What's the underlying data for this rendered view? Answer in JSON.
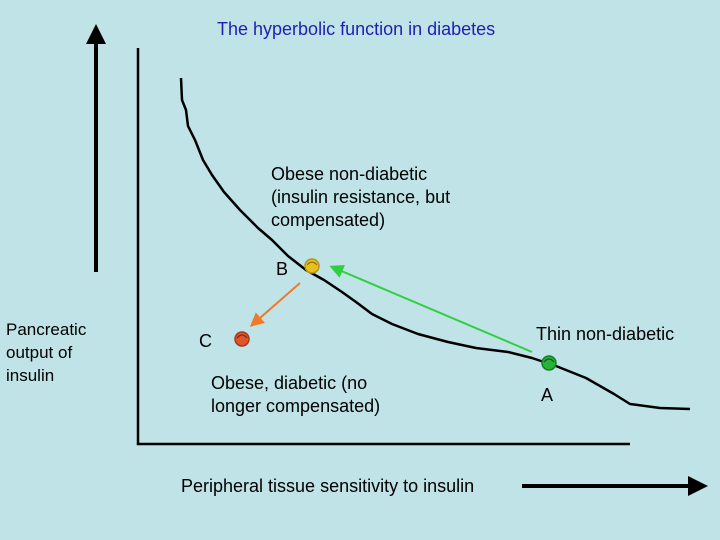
{
  "title": "The hyperbolic function in diabetes",
  "y_axis_label": "Pancreatic\noutput of\ninsulin",
  "x_axis_label": "Peripheral tissue sensitivity to insulin",
  "points": [
    {
      "id": "A",
      "label": "A",
      "description": "Thin non-diabetic",
      "color": "#27b33a"
    },
    {
      "id": "B",
      "label": "B",
      "description": "Obese non-diabetic\n(insulin resistance, but\ncompensated)",
      "color": "#e8c21c"
    },
    {
      "id": "C",
      "label": "C",
      "description": "Obese, diabetic (no\nlonger compensated)",
      "color": "#e0562a"
    }
  ],
  "arrows": [
    {
      "from": "A",
      "to": "B",
      "color": "#2fcf3f"
    },
    {
      "from": "B",
      "to": "C",
      "color": "#f07a2a"
    }
  ],
  "colors": {
    "background": "#bfe3e6",
    "title": "#1f1fb4",
    "axis": "#000000"
  }
}
